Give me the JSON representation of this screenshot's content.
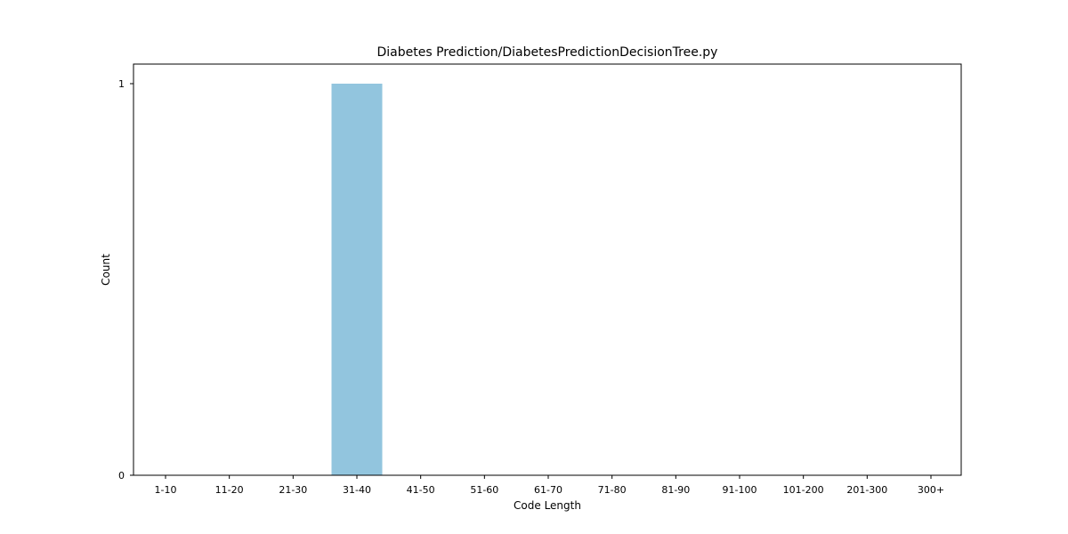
{
  "chart_data": {
    "type": "bar",
    "title": "Diabetes Prediction/DiabetesPredictionDecisionTree.py",
    "xlabel": "Code Length",
    "ylabel": "Count",
    "categories": [
      "1-10",
      "11-20",
      "21-30",
      "31-40",
      "41-50",
      "51-60",
      "61-70",
      "71-80",
      "81-90",
      "91-100",
      "101-200",
      "201-300",
      "300+"
    ],
    "values": [
      0,
      0,
      0,
      1,
      0,
      0,
      0,
      0,
      0,
      0,
      0,
      0,
      0
    ],
    "ylim": [
      0,
      1
    ],
    "yticks": [
      0,
      1
    ],
    "grid": false,
    "bar_color": "#92c5de"
  }
}
